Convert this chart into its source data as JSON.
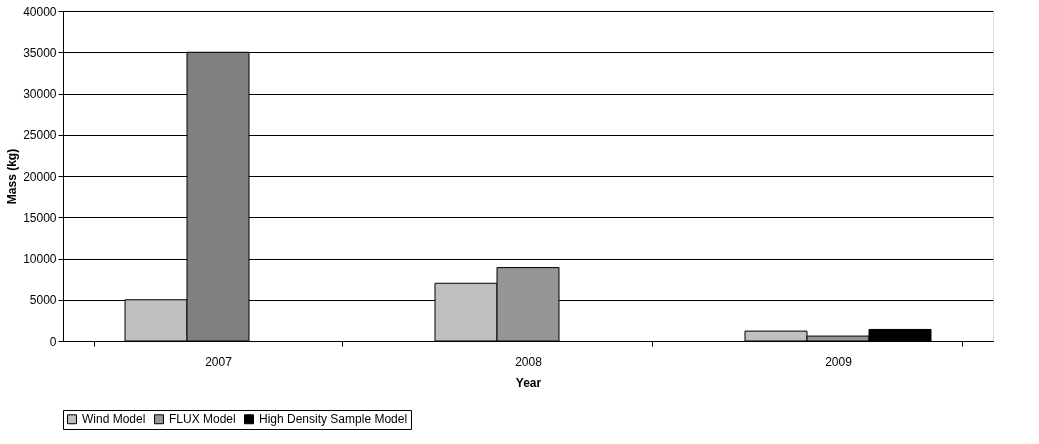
{
  "chart_data": {
    "type": "bar",
    "xlabel": "Year",
    "ylabel": "Mass (kg)",
    "categories": [
      "2007",
      "2008",
      "2009"
    ],
    "series": [
      {
        "name": "Wind Model",
        "color": "#c0c0c0",
        "values": [
          5000,
          7000,
          1200
        ]
      },
      {
        "name": "FLUX Model",
        "color": "#969696",
        "colors": [
          "#808080",
          "#969696",
          "#969696"
        ],
        "values": [
          35000,
          8900,
          600
        ]
      },
      {
        "name": "High Density Sample Model",
        "color": "#000000",
        "values": [
          null,
          null,
          1400
        ]
      }
    ],
    "ylim": [
      0,
      40000
    ],
    "yticks": [
      0,
      5000,
      10000,
      15000,
      20000,
      25000,
      30000,
      35000,
      40000
    ],
    "grid": "y",
    "legend": "bottom"
  }
}
